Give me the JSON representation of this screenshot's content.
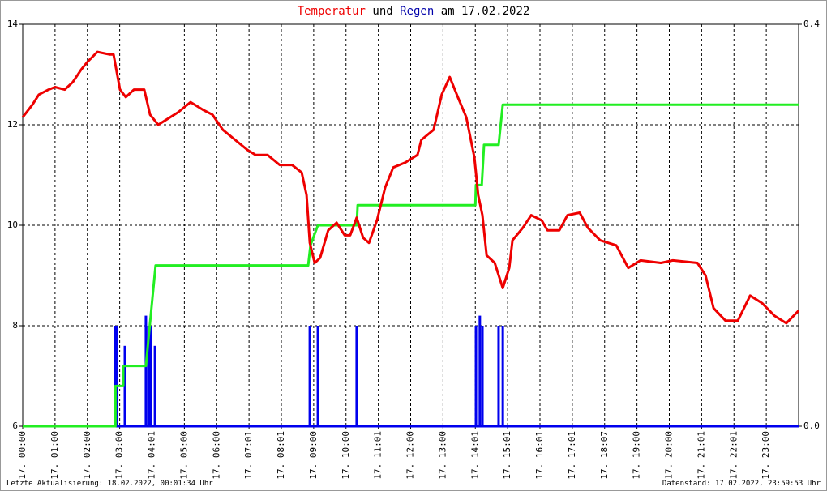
{
  "chart_data": {
    "type": "line",
    "title_parts": [
      {
        "text": "Temperatur",
        "color": "#ee0000"
      },
      {
        "text": "und",
        "color": "#000000"
      },
      {
        "text": "Regen",
        "color": "#0000aa"
      },
      {
        "text": "am 17.02.2022",
        "color": "#000000"
      }
    ],
    "xlim": [
      0,
      24
    ],
    "xticks": [
      {
        "value": 0,
        "label": "17. 00:00"
      },
      {
        "value": 1,
        "label": "17. 01:00"
      },
      {
        "value": 2,
        "label": "17. 02:00"
      },
      {
        "value": 3,
        "label": "17. 03:00"
      },
      {
        "value": 4,
        "label": "17. 04:01"
      },
      {
        "value": 5,
        "label": "17. 05:00"
      },
      {
        "value": 6,
        "label": "17. 06:00"
      },
      {
        "value": 7,
        "label": "17. 07:01"
      },
      {
        "value": 8,
        "label": "17. 08:01"
      },
      {
        "value": 9,
        "label": "17. 09:00"
      },
      {
        "value": 10,
        "label": "17. 10:00"
      },
      {
        "value": 11,
        "label": "17. 11:01"
      },
      {
        "value": 12,
        "label": "17. 12:00"
      },
      {
        "value": 13,
        "label": "17. 13:00"
      },
      {
        "value": 14,
        "label": "17. 14:01"
      },
      {
        "value": 15,
        "label": "17. 15:01"
      },
      {
        "value": 16,
        "label": "17. 16:01"
      },
      {
        "value": 17,
        "label": "17. 17:01"
      },
      {
        "value": 18,
        "label": "17. 18:07"
      },
      {
        "value": 19,
        "label": "17. 19:00"
      },
      {
        "value": 20,
        "label": "17. 20:00"
      },
      {
        "value": 21,
        "label": "17. 21:01"
      },
      {
        "value": 22,
        "label": "17. 22:01"
      },
      {
        "value": 23,
        "label": "17. 23:00"
      }
    ],
    "ylim": [
      6,
      14
    ],
    "yticks": [
      6,
      8,
      10,
      12,
      14
    ],
    "y2lim": [
      0,
      0.4
    ],
    "y2ticks": [
      {
        "value": 0,
        "label": "0.0"
      },
      0.4
    ],
    "grid": true,
    "series": [
      {
        "mark": "line",
        "color": "#0000ee",
        "axis": "y2",
        "x": [
          2.86,
          2.91,
          3.16,
          3.81,
          3.89,
          3.96,
          4.09,
          8.88,
          9.13,
          10.33,
          14.02,
          14.14,
          14.22,
          14.72,
          14.85
        ],
        "values": [
          0.1,
          0.1,
          0.08,
          0.11,
          0.1,
          0.1,
          0.08,
          0.1,
          0.1,
          0.1,
          0.1,
          0.11,
          0.1,
          0.1,
          0.1
        ],
        "bars": true
      },
      {
        "mark": "line",
        "color": "#22ee22",
        "axis": "y2",
        "x": [
          0,
          2.87,
          2.87,
          3.11,
          3.11,
          3.81,
          4.11,
          8.83,
          8.9,
          9.13,
          10.33,
          10.36,
          14.0,
          14.02,
          14.2,
          14.27,
          14.72,
          14.85,
          24
        ],
        "values": [
          0,
          0,
          0.04,
          0.04,
          0.06,
          0.06,
          0.16,
          0.16,
          0.18,
          0.2,
          0.2,
          0.22,
          0.22,
          0.24,
          0.24,
          0.28,
          0.28,
          0.32,
          0.32
        ]
      },
      {
        "mark": "line",
        "color": "#ee0000",
        "axis": "y",
        "x": [
          0,
          0.3,
          0.5,
          0.8,
          1.0,
          1.3,
          1.55,
          1.81,
          2.0,
          2.31,
          2.68,
          2.81,
          3.01,
          3.19,
          3.44,
          3.76,
          3.94,
          4.19,
          4.44,
          4.81,
          5.19,
          5.57,
          5.87,
          6.19,
          6.57,
          6.95,
          7.2,
          7.57,
          7.95,
          8.33,
          8.63,
          8.78,
          8.88,
          9.03,
          9.2,
          9.45,
          9.71,
          9.96,
          10.13,
          10.33,
          10.53,
          10.71,
          10.96,
          11.21,
          11.46,
          11.84,
          12.21,
          12.33,
          12.71,
          12.96,
          13.21,
          13.46,
          13.72,
          13.97,
          14.09,
          14.22,
          14.35,
          14.6,
          14.85,
          15.05,
          15.15,
          15.47,
          15.73,
          16.05,
          16.23,
          16.6,
          16.85,
          17.23,
          17.48,
          17.86,
          18.11,
          18.36,
          18.73,
          19.11,
          19.74,
          20.11,
          20.87,
          21.12,
          21.37,
          21.74,
          22.12,
          22.5,
          22.87,
          23.25,
          23.62,
          24.0
        ],
        "values": [
          12.15,
          12.4,
          12.6,
          12.7,
          12.75,
          12.7,
          12.85,
          13.1,
          13.25,
          13.45,
          13.4,
          13.4,
          12.7,
          12.55,
          12.7,
          12.7,
          12.2,
          12.0,
          12.1,
          12.25,
          12.45,
          12.3,
          12.2,
          11.9,
          11.7,
          11.5,
          11.4,
          11.4,
          11.2,
          11.2,
          11.05,
          10.6,
          9.65,
          9.25,
          9.35,
          9.9,
          10.05,
          9.8,
          9.8,
          10.15,
          9.75,
          9.65,
          10.1,
          10.75,
          11.15,
          11.25,
          11.4,
          11.7,
          11.9,
          12.6,
          12.95,
          12.55,
          12.15,
          11.35,
          10.6,
          10.2,
          9.4,
          9.25,
          8.75,
          9.15,
          9.7,
          9.95,
          10.2,
          10.1,
          9.9,
          9.9,
          10.2,
          10.25,
          9.95,
          9.7,
          9.65,
          9.6,
          9.15,
          9.3,
          9.25,
          9.3,
          9.25,
          9.0,
          8.35,
          8.1,
          8.1,
          8.6,
          8.45,
          8.2,
          8.05,
          8.3
        ]
      }
    ],
    "footer_left": "Letzte Aktualisierung: 18.02.2022, 00:01:34 Uhr",
    "footer_right": "Datenstand: 17.02.2022, 23:59:53 Uhr"
  }
}
